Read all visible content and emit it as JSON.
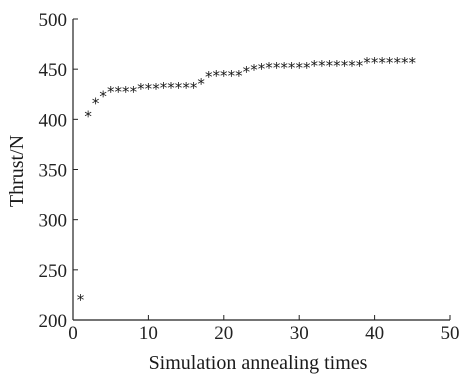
{
  "chart_data": {
    "type": "scatter",
    "title": "",
    "xlabel": "Simulation annealing times",
    "ylabel": "Thrust/N",
    "xlim": [
      0,
      50
    ],
    "ylim": [
      200,
      500
    ],
    "xticks": [
      0,
      10,
      20,
      30,
      40,
      50
    ],
    "yticks": [
      200,
      250,
      300,
      350,
      400,
      450,
      500
    ],
    "x_tick_labels": [
      "0",
      "10",
      "20",
      "30",
      "40",
      "50"
    ],
    "y_tick_labels": [
      "200",
      "250",
      "300",
      "350",
      "400",
      "450",
      "500"
    ],
    "grid": false,
    "marker": "*",
    "color": "#1a1a1a",
    "series": [
      {
        "x": [
          1,
          2,
          3,
          4,
          5,
          6,
          7,
          8,
          9,
          10,
          11,
          12,
          13,
          14,
          15,
          16,
          17,
          18,
          19,
          20,
          21,
          22,
          23,
          24,
          25,
          26,
          27,
          28,
          29,
          30,
          31,
          32,
          33,
          34,
          35,
          36,
          37,
          38,
          39,
          40,
          41,
          42,
          43,
          44,
          45
        ],
        "y": [
          221,
          404,
          417,
          424,
          428,
          428,
          428,
          428,
          431,
          431,
          431,
          432,
          432,
          432,
          432,
          432,
          436,
          443,
          444,
          444,
          444,
          444,
          448,
          450,
          451,
          452,
          452,
          452,
          452,
          452,
          452,
          454,
          454,
          454,
          454,
          454,
          454,
          454,
          457,
          457,
          457,
          457,
          457,
          457,
          457
        ]
      }
    ]
  }
}
